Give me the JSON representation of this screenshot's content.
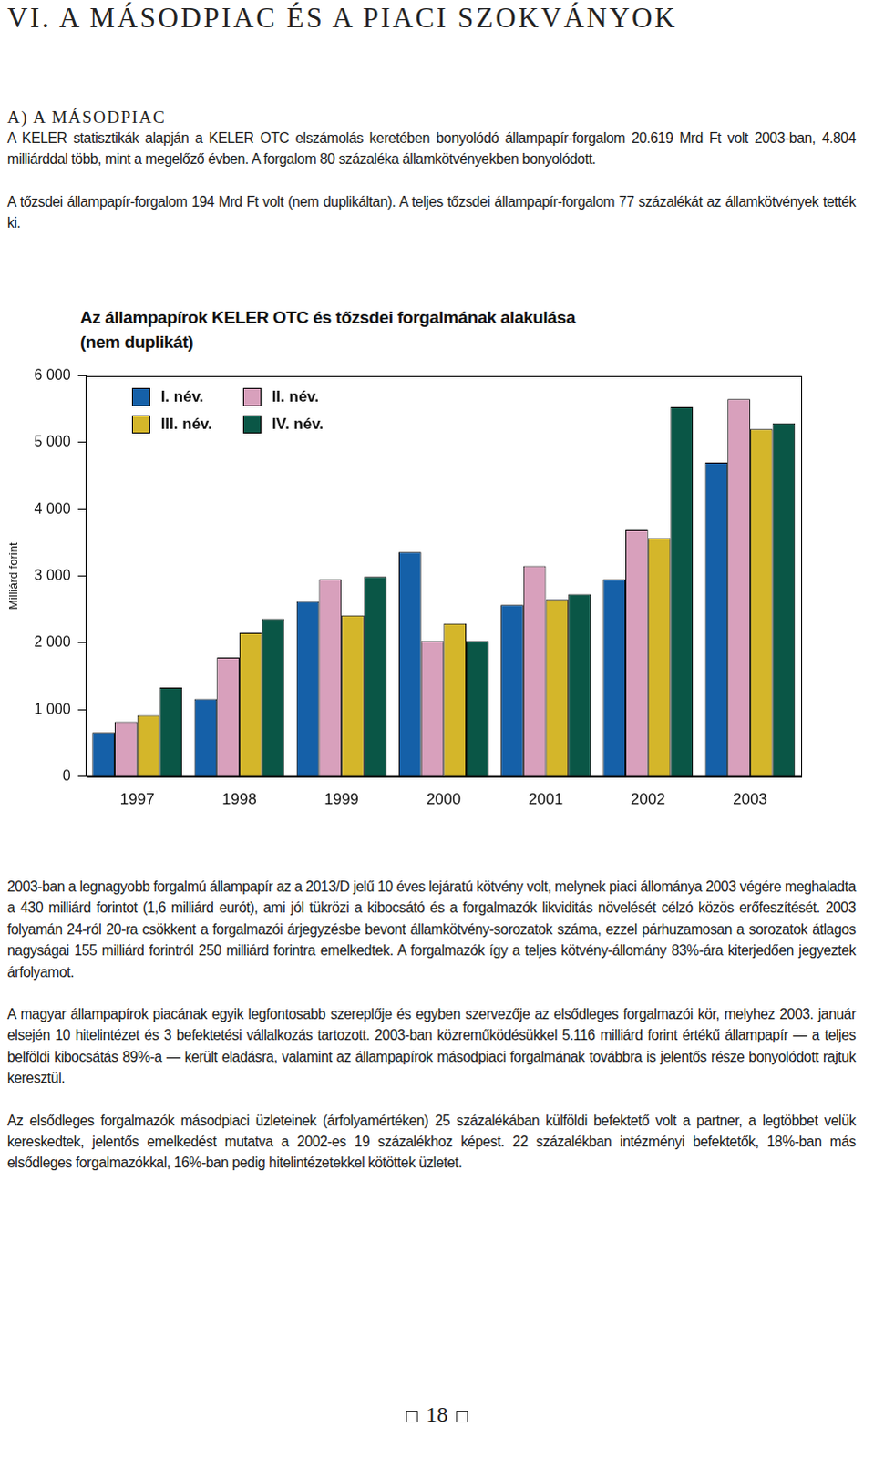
{
  "header": {
    "title": "VI. A MÁSODPIAC ÉS A PIACI SZOKVÁNYOK"
  },
  "section": {
    "title": "A) A MÁSODPIAC",
    "paragraphs": [
      "A KELER statisztikák alapján a KELER OTC elszámolás keretében bonyolódó állampapír-forgalom 20.619 Mrd Ft volt 2003-ban, 4.804 milliárddal több, mint a megelőző évben. A forgalom 80 százaléka államkötvényekben bonyolódott.",
      "A tőzsdei állampapír-forgalom 194 Mrd Ft volt (nem duplikáltan). A teljes tőzsdei állampapír-forgalom 77 százalékát az államkötvények tették ki."
    ]
  },
  "chart_data": {
    "type": "bar",
    "title": [
      "Az állampapírok KELER OTC és tőzsdei forgalmának alakulása",
      "(nem duplikát)"
    ],
    "y_label": "Milliárd forint",
    "categories": [
      "1997",
      "1998",
      "1999",
      "2000",
      "2001",
      "2002",
      "2003"
    ],
    "series": [
      {
        "name": "I. név.",
        "color": "#1560a8",
        "values": [
          660,
          1160,
          2620,
          3360,
          2570,
          2950,
          4700
        ]
      },
      {
        "name": "II. név.",
        "color": "#d8a0bc",
        "values": [
          820,
          1780,
          2950,
          2030,
          3150,
          3690,
          5650
        ]
      },
      {
        "name": "III. név.",
        "color": "#d4b62a",
        "values": [
          915,
          2150,
          2410,
          2290,
          2650,
          3570,
          5200
        ]
      },
      {
        "name": "IV. név.",
        "color": "#0a5646",
        "values": [
          1330,
          2360,
          2990,
          2030,
          2730,
          5530,
          5290
        ]
      }
    ],
    "ylim": [
      0,
      6000
    ],
    "yticks": [
      0,
      {
        "value": 1000,
        "label": "1 000"
      },
      {
        "value": 2000,
        "label": "2 000"
      },
      {
        "value": 3000,
        "label": "3 000"
      },
      {
        "value": 4000,
        "label": "4 000"
      },
      {
        "value": 5000,
        "label": "5 000"
      },
      {
        "value": 6000,
        "label": "6 000"
      }
    ],
    "grid": false,
    "legend": "upper left"
  },
  "paragraphs_after": [
    "2003-ban a legnagyobb forgalmú állampapír az a 2013/D jelű 10 éves lejáratú kötvény volt, melynek piaci állománya 2003 végére meghaladta a 430 milliárd forintot (1,6 milliárd eurót), ami jól tükrözi a kibocsátó és a forgalmazók likviditás növelését célzó közös erőfeszítését. 2003 folyamán 24-ról 20-ra csökkent a forgalmazói árjegyzésbe bevont államkötvény-sorozatok száma, ezzel párhuzamosan a sorozatok átlagos nagyságai 155 milliárd forintról 250 milliárd forintra emelkedtek. A forgalmazók így a teljes kötvény-állomány 83%-ára kiterjedően jegyeztek árfolyamot.",
    "A magyar állampapírok piacának egyik legfontosabb szereplője és egyben szervezője az elsődleges forgalmazói kör, melyhez 2003. január elsején 10 hitelintézet és 3 befektetési vállalkozás tartozott. 2003-ban közreműködésükkel 5.116 milliárd forint értékű állampapír — a teljes belföldi kibocsátás 89%-a — került eladásra, valamint az állampapírok másodpiaci forgalmának továbbra is jelentős része bonyolódott rajtuk keresztül.",
    "Az elsődleges forgalmazók másodpiaci üzleteinek (árfolyamértéken) 25 százalékában külföldi befektető volt a partner, a legtöbbet velük kereskedtek, jelentős emelkedést mutatva a 2002-es 19 százalékhoz képest. 22 százalékban intézményi befektetők, 18%-ban más elsődleges forgalmazókkal, 16%-ban pedig hitelintézetekkel kötöttek üzletet."
  ],
  "page_number": "18"
}
